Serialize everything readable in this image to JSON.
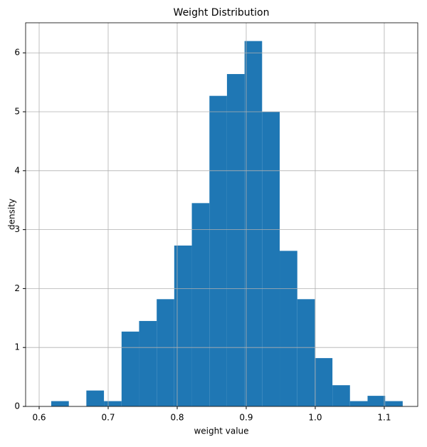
{
  "chart_data": {
    "type": "histogram",
    "title": "Weight Distribution",
    "x_label": "weight value",
    "y_label": "density",
    "bins": [
      0.6175,
      0.643,
      0.6684,
      0.6939,
      0.7194,
      0.7448,
      0.7703,
      0.7957,
      0.8212,
      0.8467,
      0.8721,
      0.8976,
      0.923,
      0.9485,
      0.974,
      0.9994,
      1.0249,
      1.0503,
      1.0758,
      1.1013,
      1.1267
    ],
    "values": [
      0.09,
      0,
      0.27,
      0.09,
      1.27,
      1.45,
      1.82,
      2.73,
      3.45,
      5.27,
      5.64,
      6.2,
      5.0,
      2.64,
      1.82,
      0.82,
      0.36,
      0.09,
      0.18,
      0.09
    ],
    "color": "#1f77b4",
    "xlim": [
      0.5804,
      1.1485
    ],
    "xticks": [
      0.6,
      0.7,
      0.8,
      0.9,
      {
        "value": 1.0,
        "label": "1.0"
      },
      1.1
    ],
    "ylim": [
      0,
      6.51
    ],
    "yticks": [
      0,
      1,
      2,
      3,
      4,
      5,
      6
    ],
    "grid": true
  }
}
